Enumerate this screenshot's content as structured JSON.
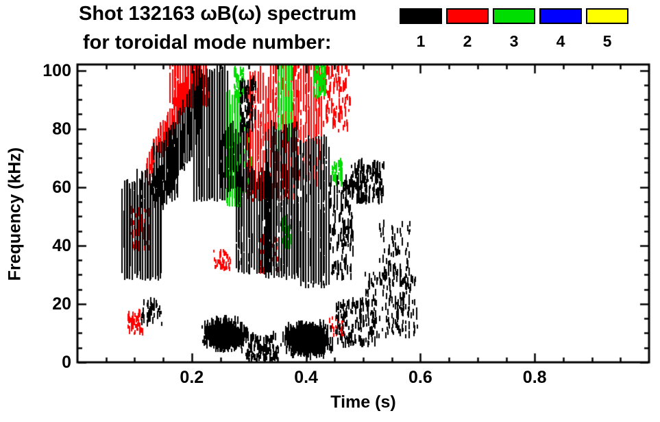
{
  "title": {
    "line1": "Shot 132163 ωB(ω) spectrum",
    "line2": "for toroidal mode number:"
  },
  "legend": {
    "modes": [
      {
        "label": "1",
        "color": "#000000"
      },
      {
        "label": "2",
        "color": "#ff0000"
      },
      {
        "label": "3",
        "color": "#00dd00"
      },
      {
        "label": "4",
        "color": "#0000ff"
      },
      {
        "label": "5",
        "color": "#ffff00"
      }
    ]
  },
  "chart_data": {
    "type": "scatter",
    "title": "Shot 132163 ωB(ω) spectrum for toroidal mode number: 1 2 3 4 5",
    "xlabel": "Time (s)",
    "ylabel": "Frequency (kHz)",
    "xlim": [
      0.0,
      1.0
    ],
    "ylim": [
      0,
      102
    ],
    "x_ticks": [
      0.2,
      0.4,
      0.6,
      0.8
    ],
    "x_tick_labels": [
      "0.2",
      "0.4",
      "0.6",
      "0.8"
    ],
    "x_minor_step": 0.05,
    "y_ticks": [
      0,
      20,
      40,
      60,
      80,
      100
    ],
    "y_tick_labels": [
      "0",
      "20",
      "40",
      "60",
      "80",
      "100"
    ],
    "y_minor_step": 5,
    "grid": false,
    "legend_position": "top-right",
    "series": [
      {
        "name": "n=1",
        "color": "#000000"
      },
      {
        "name": "n=2",
        "color": "#ff0000"
      },
      {
        "name": "n=3",
        "color": "#00dd00"
      },
      {
        "name": "n=4",
        "color": "#0000ff"
      },
      {
        "name": "n=5",
        "color": "#ffff00"
      }
    ],
    "clusters": [
      {
        "mode": 2,
        "type": "arc",
        "t": [
          0.122,
          0.208
        ],
        "f_path": [
          64,
          99
        ],
        "width": 7,
        "count": 800,
        "len": [
          1,
          4
        ]
      },
      {
        "mode": 2,
        "type": "striate",
        "t": [
          0.162,
          0.228
        ],
        "f": [
          87,
          102
        ],
        "count": 500,
        "len": [
          1,
          5
        ]
      },
      {
        "mode": 2,
        "type": "dots",
        "t": [
          0.093,
          0.126
        ],
        "f": [
          38,
          52
        ],
        "count": 70,
        "len": [
          1,
          3
        ]
      },
      {
        "mode": 2,
        "type": "dots",
        "t": [
          0.088,
          0.115
        ],
        "f": [
          9,
          16
        ],
        "count": 45,
        "len": [
          1,
          2.5
        ]
      },
      {
        "mode": 2,
        "type": "dots",
        "t": [
          0.238,
          0.268
        ],
        "f": [
          31,
          38
        ],
        "count": 40,
        "len": [
          1,
          2
        ]
      },
      {
        "mode": 2,
        "type": "striate",
        "t": [
          0.298,
          0.338
        ],
        "f": [
          55,
          96
        ],
        "count": 300,
        "len": [
          1,
          6
        ]
      },
      {
        "mode": 2,
        "type": "striate",
        "t": [
          0.338,
          0.382
        ],
        "f": [
          55,
          102
        ],
        "count": 330,
        "len": [
          1,
          6
        ]
      },
      {
        "mode": 2,
        "type": "striate",
        "t": [
          0.382,
          0.428
        ],
        "f": [
          60,
          102
        ],
        "count": 300,
        "len": [
          1,
          6
        ]
      },
      {
        "mode": 2,
        "type": "dots",
        "t": [
          0.43,
          0.478
        ],
        "f": [
          78,
          101
        ],
        "count": 100,
        "len": [
          1,
          4
        ]
      },
      {
        "mode": 2,
        "type": "dots",
        "t": [
          0.318,
          0.352
        ],
        "f": [
          30,
          42
        ],
        "count": 45,
        "len": [
          1,
          2.5
        ]
      },
      {
        "mode": 2,
        "type": "dots",
        "t": [
          0.44,
          0.468
        ],
        "f": [
          8,
          15
        ],
        "count": 20,
        "len": [
          1,
          2
        ]
      },
      {
        "mode": 3,
        "type": "striate",
        "t": [
          0.262,
          0.286
        ],
        "f": [
          53,
          86
        ],
        "count": 450,
        "len": [
          2,
          8
        ]
      },
      {
        "mode": 3,
        "type": "striate",
        "t": [
          0.286,
          0.302
        ],
        "f": [
          58,
          80
        ],
        "count": 130,
        "len": [
          1,
          5
        ]
      },
      {
        "mode": 3,
        "type": "striate",
        "t": [
          0.352,
          0.374
        ],
        "f": [
          72,
          102
        ],
        "count": 240,
        "len": [
          1,
          6
        ]
      },
      {
        "mode": 3,
        "type": "dots",
        "t": [
          0.356,
          0.374
        ],
        "f": [
          38,
          48
        ],
        "count": 55,
        "len": [
          1,
          3
        ]
      },
      {
        "mode": 3,
        "type": "dots",
        "t": [
          0.414,
          0.434
        ],
        "f": [
          90,
          102
        ],
        "count": 65,
        "len": [
          1,
          4
        ]
      },
      {
        "mode": 3,
        "type": "dots",
        "t": [
          0.446,
          0.463
        ],
        "f": [
          60,
          68
        ],
        "count": 35,
        "len": [
          1,
          3
        ]
      },
      {
        "mode": 3,
        "type": "dots",
        "t": [
          0.274,
          0.292
        ],
        "f": [
          88,
          100
        ],
        "count": 45,
        "len": [
          1,
          3
        ]
      },
      {
        "mode": 1,
        "type": "striate",
        "t": [
          0.078,
          0.146
        ],
        "f": [
          28,
          55
        ],
        "count": 1000,
        "len": [
          2,
          9
        ]
      },
      {
        "mode": 1,
        "type": "striate",
        "t": [
          0.1,
          0.152
        ],
        "f": [
          52,
          63
        ],
        "count": 160,
        "len": [
          1,
          5
        ]
      },
      {
        "mode": 1,
        "type": "striate",
        "t": [
          0.134,
          0.176
        ],
        "f": [
          55,
          72
        ],
        "count": 220,
        "len": [
          1,
          6
        ]
      },
      {
        "mode": 1,
        "type": "arc",
        "t": [
          0.152,
          0.215
        ],
        "f_path": [
          63,
          85
        ],
        "width": 15,
        "count": 850,
        "len": [
          2,
          7
        ]
      },
      {
        "mode": 1,
        "type": "striate",
        "t": [
          0.204,
          0.262
        ],
        "f": [
          55,
          95
        ],
        "count": 950,
        "len": [
          2,
          9
        ]
      },
      {
        "mode": 1,
        "type": "striate",
        "t": [
          0.25,
          0.3
        ],
        "f": [
          58,
          78
        ],
        "count": 260,
        "len": [
          1,
          6
        ]
      },
      {
        "mode": 1,
        "type": "striate",
        "t": [
          0.278,
          0.336
        ],
        "f": [
          30,
          62
        ],
        "count": 470,
        "len": [
          1,
          7
        ]
      },
      {
        "mode": 1,
        "type": "striate",
        "t": [
          0.33,
          0.386
        ],
        "f": [
          28,
          76
        ],
        "count": 680,
        "len": [
          1,
          8
        ]
      },
      {
        "mode": 1,
        "type": "striate",
        "t": [
          0.386,
          0.442
        ],
        "f": [
          25,
          72
        ],
        "count": 580,
        "len": [
          1,
          7
        ]
      },
      {
        "mode": 1,
        "type": "dots",
        "t": [
          0.442,
          0.482
        ],
        "f": [
          28,
          62
        ],
        "count": 130,
        "len": [
          1,
          4
        ]
      },
      {
        "mode": 1,
        "type": "blob",
        "t": [
          0.214,
          0.302
        ],
        "f": [
          2,
          14
        ],
        "count": 750,
        "len": [
          1,
          4
        ]
      },
      {
        "mode": 1,
        "type": "blob",
        "t": [
          0.352,
          0.452
        ],
        "f": [
          0,
          13
        ],
        "count": 850,
        "len": [
          1,
          4
        ]
      },
      {
        "mode": 1,
        "type": "dots",
        "t": [
          0.294,
          0.352
        ],
        "f": [
          0,
          8
        ],
        "count": 110,
        "len": [
          1,
          3
        ]
      },
      {
        "mode": 1,
        "type": "dots",
        "t": [
          0.452,
          0.522
        ],
        "f": [
          5,
          20
        ],
        "count": 150,
        "len": [
          1,
          3
        ]
      },
      {
        "mode": 1,
        "type": "dots",
        "t": [
          0.503,
          0.595
        ],
        "f": [
          8,
          30
        ],
        "count": 170,
        "len": [
          1,
          3
        ]
      },
      {
        "mode": 1,
        "type": "dots",
        "t": [
          0.478,
          0.536
        ],
        "f": [
          54,
          67
        ],
        "count": 150,
        "len": [
          1,
          4
        ]
      },
      {
        "mode": 1,
        "type": "dots",
        "t": [
          0.528,
          0.582
        ],
        "f": [
          28,
          47
        ],
        "count": 60,
        "len": [
          1,
          3
        ]
      },
      {
        "mode": 1,
        "type": "dots",
        "t": [
          0.113,
          0.148
        ],
        "f": [
          12,
          20
        ],
        "count": 45,
        "len": [
          1,
          3
        ]
      },
      {
        "mode": 1,
        "type": "dots",
        "t": [
          0.284,
          0.312
        ],
        "f": [
          78,
          95
        ],
        "count": 65,
        "len": [
          1,
          4
        ]
      }
    ]
  }
}
